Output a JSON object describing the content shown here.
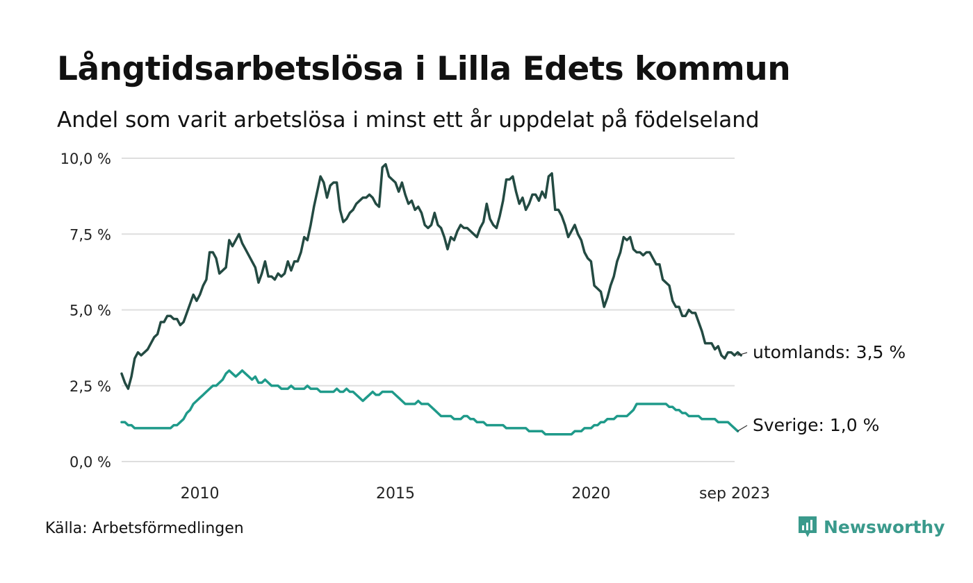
{
  "title": "Långtidsarbetslösa i Lilla Edets kommun",
  "subtitle": "Andel som varit arbetslösa i minst ett år uppdelat på födelseland",
  "source": "Källa: Arbetsförmedlingen",
  "brand": {
    "name": "Newsworthy",
    "icon": "newsworthy-logo-icon",
    "color": "#3a9a8c"
  },
  "chart_data": {
    "type": "line",
    "x_start": 2008.0,
    "x_step_years": 0.08333,
    "xlim": [
      2008.0,
      2023.67
    ],
    "ylim": [
      0,
      10
    ],
    "y_ticks": [
      0,
      2.5,
      5,
      7.5,
      10
    ],
    "y_tick_labels": [
      "0,0 %",
      "2,5 %",
      "5,0 %",
      "7,5 %",
      "10,0 %"
    ],
    "x_ticks": [
      2010,
      2015,
      2020,
      2023.67
    ],
    "x_tick_labels": [
      "2010",
      "2015",
      "2020",
      "sep 2023"
    ],
    "grid": true,
    "xlabel": "",
    "ylabel": "",
    "series": [
      {
        "name": "utomlands",
        "label": "utomlands: 3,5 %",
        "color": "#234a42",
        "values": [
          2.9,
          2.6,
          2.4,
          2.8,
          3.4,
          3.6,
          3.5,
          3.6,
          3.7,
          3.9,
          4.1,
          4.2,
          4.6,
          4.6,
          4.8,
          4.8,
          4.7,
          4.7,
          4.5,
          4.6,
          4.9,
          5.2,
          5.5,
          5.3,
          5.5,
          5.8,
          6.0,
          6.9,
          6.9,
          6.7,
          6.2,
          6.3,
          6.4,
          7.3,
          7.1,
          7.3,
          7.5,
          7.2,
          7.0,
          6.8,
          6.6,
          6.4,
          5.9,
          6.2,
          6.6,
          6.1,
          6.1,
          6.0,
          6.2,
          6.1,
          6.2,
          6.6,
          6.3,
          6.6,
          6.6,
          6.9,
          7.4,
          7.3,
          7.8,
          8.4,
          8.9,
          9.4,
          9.2,
          8.7,
          9.1,
          9.2,
          9.2,
          8.3,
          7.9,
          8.0,
          8.2,
          8.3,
          8.5,
          8.6,
          8.7,
          8.7,
          8.8,
          8.7,
          8.5,
          8.4,
          9.7,
          9.8,
          9.4,
          9.3,
          9.2,
          8.9,
          9.2,
          8.8,
          8.5,
          8.6,
          8.3,
          8.4,
          8.2,
          7.8,
          7.7,
          7.8,
          8.2,
          7.8,
          7.7,
          7.4,
          7.0,
          7.4,
          7.3,
          7.6,
          7.8,
          7.7,
          7.7,
          7.6,
          7.5,
          7.4,
          7.7,
          7.9,
          8.5,
          8.0,
          7.8,
          7.7,
          8.1,
          8.6,
          9.3,
          9.3,
          9.4,
          8.9,
          8.5,
          8.7,
          8.3,
          8.5,
          8.8,
          8.8,
          8.6,
          8.9,
          8.7,
          9.4,
          9.5,
          8.3,
          8.3,
          8.1,
          7.8,
          7.4,
          7.6,
          7.8,
          7.5,
          7.3,
          6.9,
          6.7,
          6.6,
          5.8,
          5.7,
          5.6,
          5.1,
          5.4,
          5.8,
          6.1,
          6.6,
          6.9,
          7.4,
          7.3,
          7.4,
          7.0,
          6.9,
          6.9,
          6.8,
          6.9,
          6.9,
          6.7,
          6.5,
          6.5,
          6.0,
          5.9,
          5.8,
          5.3,
          5.1,
          5.1,
          4.8,
          4.8,
          5.0,
          4.9,
          4.9,
          4.6,
          4.3,
          3.9,
          3.9,
          3.9,
          3.7,
          3.8,
          3.5,
          3.4,
          3.6,
          3.6,
          3.5,
          3.6,
          3.5
        ]
      },
      {
        "name": "Sverige",
        "label": "Sverige: 1,0 %",
        "color": "#1f9a8a",
        "values": [
          1.3,
          1.3,
          1.2,
          1.2,
          1.1,
          1.1,
          1.1,
          1.1,
          1.1,
          1.1,
          1.1,
          1.1,
          1.1,
          1.1,
          1.1,
          1.1,
          1.2,
          1.2,
          1.3,
          1.4,
          1.6,
          1.7,
          1.9,
          2.0,
          2.1,
          2.2,
          2.3,
          2.4,
          2.5,
          2.5,
          2.6,
          2.7,
          2.9,
          3.0,
          2.9,
          2.8,
          2.9,
          3.0,
          2.9,
          2.8,
          2.7,
          2.8,
          2.6,
          2.6,
          2.7,
          2.6,
          2.5,
          2.5,
          2.5,
          2.4,
          2.4,
          2.4,
          2.5,
          2.4,
          2.4,
          2.4,
          2.4,
          2.5,
          2.4,
          2.4,
          2.4,
          2.3,
          2.3,
          2.3,
          2.3,
          2.3,
          2.4,
          2.3,
          2.3,
          2.4,
          2.3,
          2.3,
          2.2,
          2.1,
          2.0,
          2.1,
          2.2,
          2.3,
          2.2,
          2.2,
          2.3,
          2.3,
          2.3,
          2.3,
          2.2,
          2.1,
          2.0,
          1.9,
          1.9,
          1.9,
          1.9,
          2.0,
          1.9,
          1.9,
          1.9,
          1.8,
          1.7,
          1.6,
          1.5,
          1.5,
          1.5,
          1.5,
          1.4,
          1.4,
          1.4,
          1.5,
          1.5,
          1.4,
          1.4,
          1.3,
          1.3,
          1.3,
          1.2,
          1.2,
          1.2,
          1.2,
          1.2,
          1.2,
          1.1,
          1.1,
          1.1,
          1.1,
          1.1,
          1.1,
          1.1,
          1.0,
          1.0,
          1.0,
          1.0,
          1.0,
          0.9,
          0.9,
          0.9,
          0.9,
          0.9,
          0.9,
          0.9,
          0.9,
          0.9,
          1.0,
          1.0,
          1.0,
          1.1,
          1.1,
          1.1,
          1.2,
          1.2,
          1.3,
          1.3,
          1.4,
          1.4,
          1.4,
          1.5,
          1.5,
          1.5,
          1.5,
          1.6,
          1.7,
          1.9,
          1.9,
          1.9,
          1.9,
          1.9,
          1.9,
          1.9,
          1.9,
          1.9,
          1.9,
          1.8,
          1.8,
          1.7,
          1.7,
          1.6,
          1.6,
          1.5,
          1.5,
          1.5,
          1.5,
          1.4,
          1.4,
          1.4,
          1.4,
          1.4,
          1.3,
          1.3,
          1.3,
          1.3,
          1.2,
          1.1,
          1.0
        ]
      }
    ]
  }
}
